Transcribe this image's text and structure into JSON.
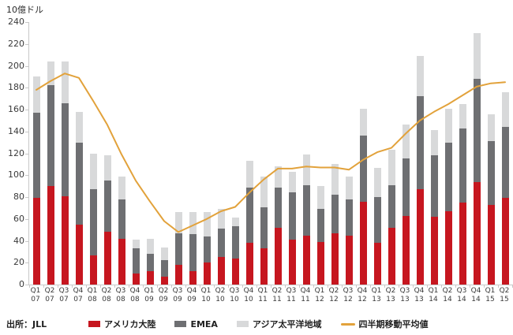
{
  "title": "10億ドル",
  "source": "出所：JLL",
  "legend": {
    "americas": "アメリカ大陸",
    "emea": "EMEA",
    "apac": "アジア太平洋地域",
    "moving_avg": "四半期移動平均値"
  },
  "colors": {
    "americas": "#c6161f",
    "emea": "#6e6f72",
    "apac": "#d8d9da",
    "moving_avg": "#e2a23b",
    "axis": "#c8c8c8",
    "text": "#3a3a3a"
  },
  "chart_data": {
    "type": "bar",
    "stacked": true,
    "title": "10億ドル",
    "ylabel": "10億ドル",
    "xlabel": "",
    "ylim": [
      0,
      240
    ],
    "ytick_step": 20,
    "grid": false,
    "legend_position": "bottom",
    "categories": [
      "Q1 07",
      "Q2 07",
      "Q3 07",
      "Q4 07",
      "Q1 08",
      "Q2 08",
      "Q3 08",
      "Q4 08",
      "Q1 09",
      "Q2 09",
      "Q3 09",
      "Q4 09",
      "Q1 10",
      "Q2 10",
      "Q3 10",
      "Q4 10",
      "Q1 11",
      "Q2 11",
      "Q3 11",
      "Q4 11",
      "Q1 12",
      "Q2 12",
      "Q3 12",
      "Q4 12",
      "Q1 13",
      "Q2 13",
      "Q3 13",
      "Q4 13",
      "Q1 14",
      "Q2 14",
      "Q3 14",
      "Q4 14",
      "Q1 15",
      "Q2 15"
    ],
    "series": [
      {
        "key": "americas",
        "name": "アメリカ大陸",
        "values": [
          79,
          90,
          81,
          55,
          27,
          48,
          42,
          10,
          12,
          7,
          18,
          12,
          20,
          25,
          24,
          38,
          33,
          52,
          41,
          45,
          39,
          47,
          45,
          76,
          38,
          52,
          63,
          87,
          62,
          67,
          75,
          94,
          73,
          79
        ]
      },
      {
        "key": "emea",
        "name": "EMEA",
        "values": [
          78,
          92,
          85,
          75,
          60,
          47,
          36,
          23,
          16,
          15,
          29,
          34,
          24,
          26,
          29,
          51,
          38,
          37,
          43,
          46,
          30,
          35,
          33,
          60,
          42,
          39,
          52,
          85,
          56,
          63,
          68,
          94,
          58,
          65
        ]
      },
      {
        "key": "apac",
        "name": "アジア太平洋地域",
        "values": [
          33,
          22,
          38,
          28,
          33,
          23,
          21,
          8,
          14,
          12,
          19,
          20,
          22,
          18,
          8,
          24,
          28,
          19,
          19,
          28,
          21,
          28,
          21,
          25,
          27,
          32,
          31,
          37,
          23,
          31,
          22,
          42,
          25,
          32
        ]
      }
    ],
    "line_series": {
      "key": "moving_avg",
      "name": "四半期移動平均値",
      "values": [
        178,
        186,
        193,
        189,
        168,
        146,
        119,
        95,
        76,
        58,
        48,
        54,
        60,
        67,
        71,
        84,
        96,
        106,
        106,
        108,
        107,
        107,
        105,
        114,
        121,
        125,
        138,
        150,
        158,
        165,
        173,
        181,
        184,
        185
      ]
    }
  }
}
